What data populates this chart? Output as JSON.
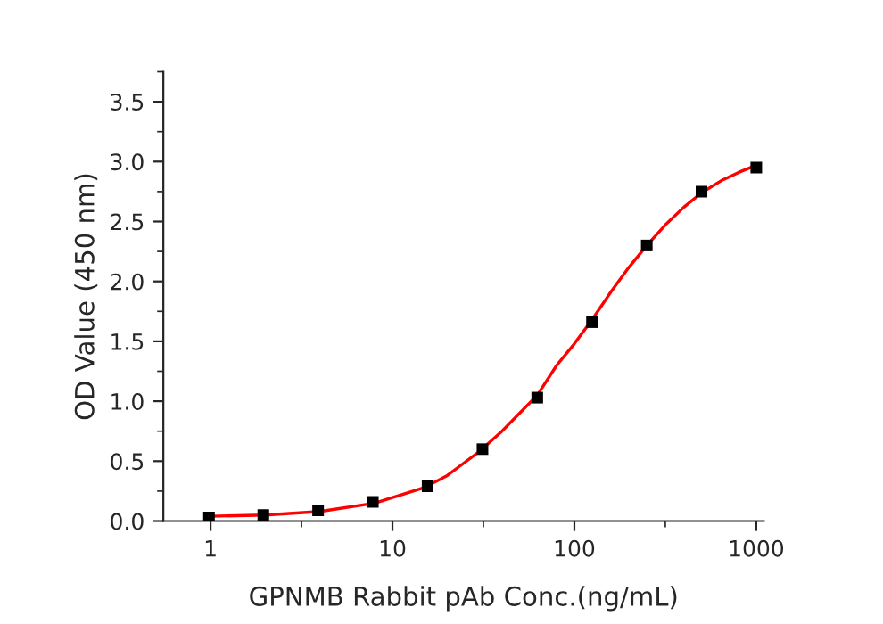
{
  "chart_data": {
    "type": "scatter",
    "xlabel": "GPNMB Rabbit pAb Conc.(ng/mL)",
    "ylabel": "OD Value (450 nm)",
    "log": "x",
    "grid": false,
    "legend": false,
    "xlim": [
      0.55,
      1100
    ],
    "xticks": [
      1,
      10,
      100,
      1000
    ],
    "ylim": [
      0,
      3.75
    ],
    "yticks": [
      {
        "value": 0,
        "label": "0.0"
      },
      {
        "value": 0.5,
        "label": "0.5"
      },
      {
        "value": 1,
        "label": "1.0"
      },
      {
        "value": 1.5,
        "label": "1.5"
      },
      {
        "value": 2,
        "label": "2.0"
      },
      {
        "value": 2.5,
        "label": "2.5"
      },
      {
        "value": 3,
        "label": "3.0"
      },
      {
        "value": 3.5,
        "label": "3.5"
      }
    ],
    "series": [
      {
        "color": "#000000",
        "marker": "square",
        "x": [
          0.98,
          1.95,
          3.9,
          7.8,
          15.6,
          31.25,
          62.5,
          125,
          250,
          500,
          1000
        ],
        "values": [
          0.03,
          0.05,
          0.09,
          0.16,
          0.29,
          0.6,
          1.03,
          1.66,
          2.3,
          2.75,
          2.95
        ]
      },
      {
        "type": "line",
        "color": "#ff0000",
        "marker": "none",
        "line_style": "solid",
        "x": [
          1,
          2,
          4,
          8,
          15,
          20,
          30,
          40,
          50,
          62.5,
          80,
          100,
          125,
          160,
          200,
          250,
          320,
          400,
          500,
          640,
          800,
          1000
        ],
        "values": [
          0.04,
          0.05,
          0.08,
          0.15,
          0.28,
          0.38,
          0.58,
          0.75,
          0.9,
          1.05,
          1.3,
          1.48,
          1.68,
          1.92,
          2.12,
          2.3,
          2.48,
          2.62,
          2.74,
          2.84,
          2.91,
          2.97
        ]
      }
    ]
  }
}
